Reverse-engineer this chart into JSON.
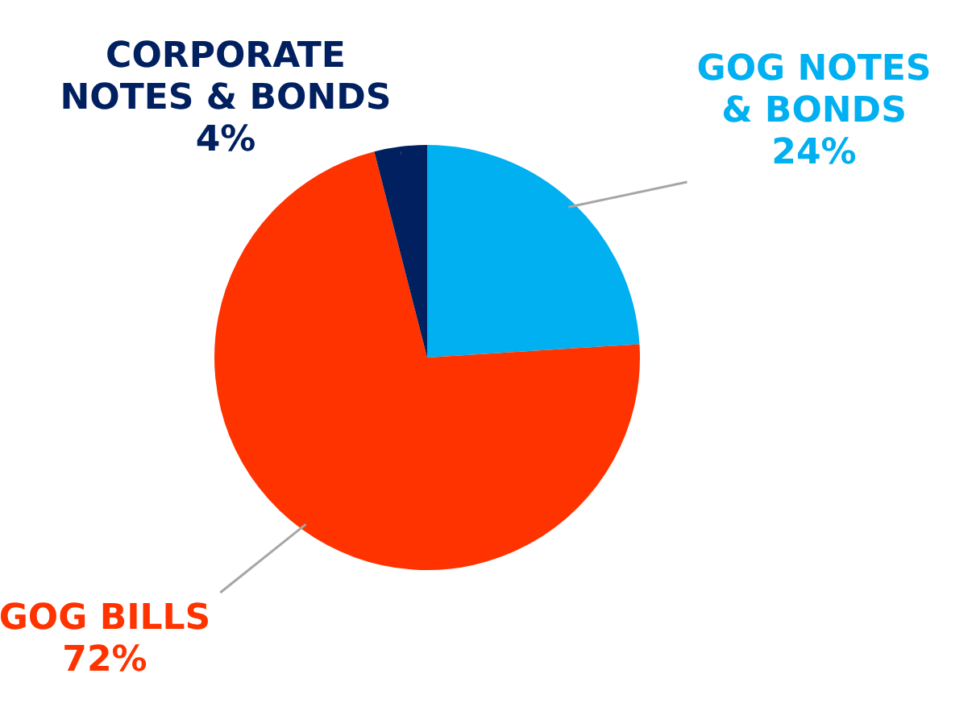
{
  "chart_data": {
    "type": "pie",
    "categories": [
      "GOG NOTES & BONDS",
      "GOG BILLS",
      "CORPORATE NOTES & BONDS"
    ],
    "values": [
      24,
      72,
      4
    ],
    "colors": [
      "#00b0f0",
      "#ff3300",
      "#002060"
    ],
    "value_labels": [
      "24%",
      "72%",
      "4%"
    ],
    "legend": false
  }
}
